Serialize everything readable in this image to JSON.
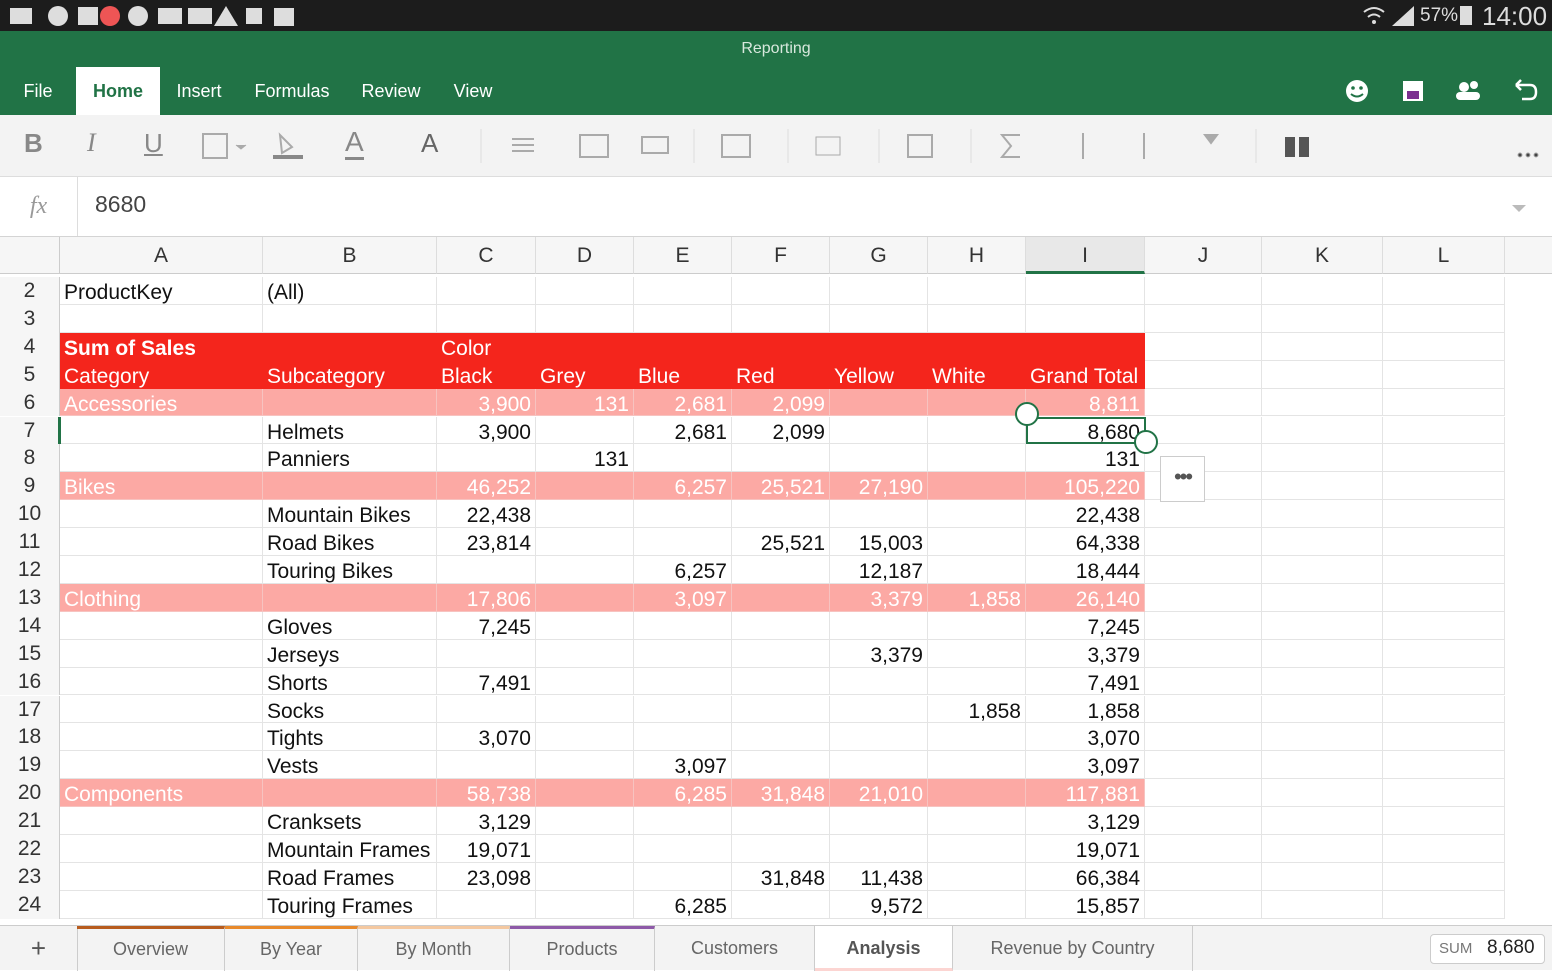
{
  "status": {
    "battery": "57%",
    "time": "14:00"
  },
  "app_title": "Reporting",
  "ribbon_tabs": [
    "File",
    "Home",
    "Insert",
    "Formulas",
    "Review",
    "View"
  ],
  "toolbar": {
    "bold": "B",
    "italic": "I",
    "underline": "U",
    "font_color": "A",
    "font_size": "A"
  },
  "formula_bar": {
    "fx": "fx",
    "value": "8680"
  },
  "columns": [
    "A",
    "B",
    "C",
    "D",
    "E",
    "F",
    "G",
    "H",
    "I",
    "J",
    "K",
    "L"
  ],
  "rows": [
    {
      "n": 2,
      "cells": [
        "ProductKey",
        "(All)",
        null,
        null,
        null,
        null,
        null,
        null,
        null
      ]
    },
    {
      "n": 3,
      "cells": [
        null,
        null,
        null,
        null,
        null,
        null,
        null,
        null,
        null
      ]
    },
    {
      "n": 4,
      "style": "header-top",
      "cells": [
        "Sum of Sales",
        null,
        "Color",
        null,
        null,
        null,
        null,
        null,
        null
      ]
    },
    {
      "n": 5,
      "style": "header",
      "cells": [
        "Category",
        "Subcategory",
        "Black",
        "Grey",
        "Blue",
        "Red",
        "Yellow",
        "White",
        "Grand Total"
      ]
    },
    {
      "n": 6,
      "style": "category",
      "cells": [
        "Accessories",
        null,
        "3,900",
        "131",
        "2,681",
        "2,099",
        null,
        null,
        "8,811"
      ]
    },
    {
      "n": 7,
      "cells": [
        null,
        "Helmets",
        "3,900",
        null,
        "2,681",
        "2,099",
        null,
        null,
        "8,680"
      ]
    },
    {
      "n": 8,
      "cells": [
        null,
        "Panniers",
        null,
        "131",
        null,
        null,
        null,
        null,
        "131"
      ]
    },
    {
      "n": 9,
      "style": "category",
      "cells": [
        "Bikes",
        null,
        "46,252",
        null,
        "6,257",
        "25,521",
        "27,190",
        null,
        "105,220"
      ]
    },
    {
      "n": 10,
      "cells": [
        null,
        "Mountain Bikes",
        "22,438",
        null,
        null,
        null,
        null,
        null,
        "22,438"
      ]
    },
    {
      "n": 11,
      "cells": [
        null,
        "Road Bikes",
        "23,814",
        null,
        null,
        "25,521",
        "15,003",
        null,
        "64,338"
      ]
    },
    {
      "n": 12,
      "cells": [
        null,
        "Touring Bikes",
        null,
        null,
        "6,257",
        null,
        "12,187",
        null,
        "18,444"
      ]
    },
    {
      "n": 13,
      "style": "category",
      "cells": [
        "Clothing",
        null,
        "17,806",
        null,
        "3,097",
        null,
        "3,379",
        "1,858",
        "26,140"
      ]
    },
    {
      "n": 14,
      "cells": [
        null,
        "Gloves",
        "7,245",
        null,
        null,
        null,
        null,
        null,
        "7,245"
      ]
    },
    {
      "n": 15,
      "cells": [
        null,
        "Jerseys",
        null,
        null,
        null,
        null,
        "3,379",
        null,
        "3,379"
      ]
    },
    {
      "n": 16,
      "cells": [
        null,
        "Shorts",
        "7,491",
        null,
        null,
        null,
        null,
        null,
        "7,491"
      ]
    },
    {
      "n": 17,
      "cells": [
        null,
        "Socks",
        null,
        null,
        null,
        null,
        null,
        "1,858",
        "1,858"
      ]
    },
    {
      "n": 18,
      "cells": [
        null,
        "Tights",
        "3,070",
        null,
        null,
        null,
        null,
        null,
        "3,070"
      ]
    },
    {
      "n": 19,
      "cells": [
        null,
        "Vests",
        null,
        null,
        "3,097",
        null,
        null,
        null,
        "3,097"
      ]
    },
    {
      "n": 20,
      "style": "category",
      "cells": [
        "Components",
        null,
        "58,738",
        null,
        "6,285",
        "31,848",
        "21,010",
        null,
        "117,881"
      ]
    },
    {
      "n": 21,
      "cells": [
        null,
        "Cranksets",
        "3,129",
        null,
        null,
        null,
        null,
        null,
        "3,129"
      ]
    },
    {
      "n": 22,
      "cells": [
        null,
        "Mountain Frames",
        "19,071",
        null,
        null,
        null,
        null,
        null,
        "19,071"
      ]
    },
    {
      "n": 23,
      "cells": [
        null,
        "Road Frames",
        "23,098",
        null,
        null,
        "31,848",
        "11,438",
        null,
        "66,384"
      ]
    },
    {
      "n": 24,
      "cells": [
        null,
        "Touring Frames",
        null,
        null,
        "6,285",
        null,
        "9,572",
        null,
        "15,857"
      ]
    }
  ],
  "sheets": [
    "Overview",
    "By Year",
    "By Month",
    "Products",
    "Customers",
    "Analysis",
    "Revenue by Country"
  ],
  "active_sheet": "Analysis",
  "add_sheet": "+",
  "sum": {
    "label": "SUM",
    "value": "8,680"
  }
}
